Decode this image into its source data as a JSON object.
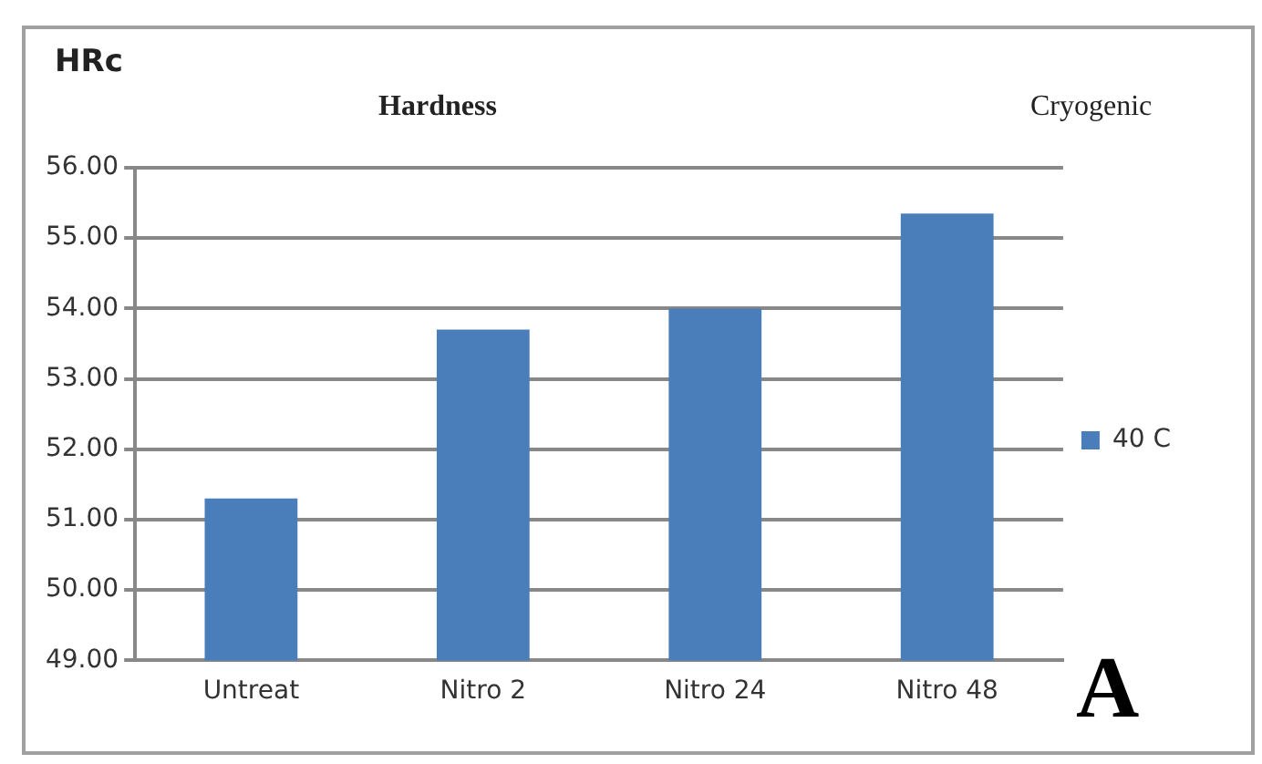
{
  "chart_data": {
    "type": "bar",
    "title": "Hardness",
    "ylabel": "HRc",
    "annotations": [
      "Cryogenic",
      "A"
    ],
    "categories": [
      "Untreat",
      "Nitro 2",
      "Nitro 24",
      "Nitro 48"
    ],
    "series": [
      {
        "name": "40 C",
        "color": "#4a7ebb",
        "values": [
          51.3,
          53.7,
          54.0,
          55.35
        ]
      }
    ],
    "ylim": [
      49,
      56
    ],
    "yticks": [
      {
        "value": 49,
        "label": "49.00"
      },
      {
        "value": 50,
        "label": "50.00"
      },
      {
        "value": 51,
        "label": "51.00"
      },
      {
        "value": 52,
        "label": "52.00"
      },
      {
        "value": 53,
        "label": "53.00"
      },
      {
        "value": 54,
        "label": "54.00"
      },
      {
        "value": 55,
        "label": "55.00"
      },
      {
        "value": 56,
        "label": "56.00"
      }
    ],
    "grid": "y",
    "legend": "right"
  }
}
